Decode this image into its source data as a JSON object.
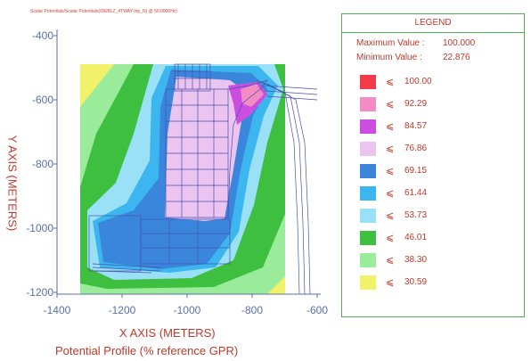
{
  "header": "Scalar Potentials/Scalar Potentials(IDEBLZ_4TWAY-Inp_N) @ 50.0000Hz)",
  "chart_data": {
    "type": "heatmap",
    "title": "Potential Profile (% reference GPR)",
    "xlabel": "X AXIS  (METERS)",
    "ylabel": "Y AXIS  (METERS)",
    "xlim": [
      -1400,
      -600
    ],
    "ylim": [
      -1200,
      -400
    ],
    "x_ticks": [
      "-1400",
      "-1200",
      "-1000",
      "-800",
      "-600"
    ],
    "y_ticks": [
      "-400",
      "-600",
      "-800",
      "-1000",
      "-1200"
    ],
    "x_tick_values": [
      -1400,
      -1200,
      -1000,
      -800,
      -600
    ],
    "y_tick_values": [
      -400,
      -600,
      -800,
      -1000,
      -1200
    ],
    "legend": {
      "title": "LEGEND",
      "max_label": "Maximum Value :",
      "max_value": "100.000",
      "min_label": "Minimum Value :",
      "min_value": "22.876",
      "levels": [
        {
          "value": "100.00",
          "color": "#f23a4a"
        },
        {
          "value": "92.29",
          "color": "#f28cc2"
        },
        {
          "value": "84.57",
          "color": "#cc4ee0"
        },
        {
          "value": "76.86",
          "color": "#ecc4f0"
        },
        {
          "value": "69.15",
          "color": "#3a86dc"
        },
        {
          "value": "61.44",
          "color": "#3cb6ee"
        },
        {
          "value": "53.73",
          "color": "#9ae0f6"
        },
        {
          "value": "46.01",
          "color": "#3fbf3f"
        },
        {
          "value": "38.30",
          "color": "#9aec9a"
        },
        {
          "value": "30.59",
          "color": "#f2f26a"
        }
      ],
      "le_symbol": "⩽"
    }
  }
}
